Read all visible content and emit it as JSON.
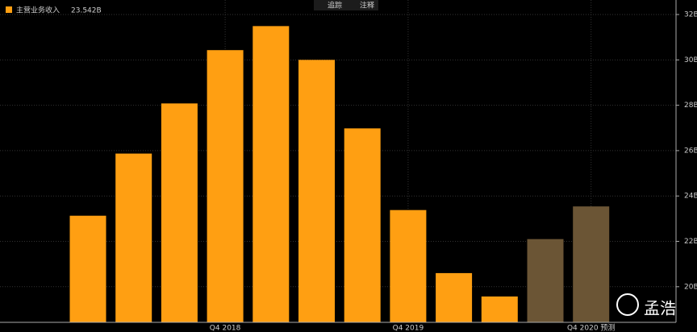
{
  "chart_data": {
    "type": "bar",
    "legend_label": "主营业务收入",
    "legend_value": "23.542B",
    "toolbar": [
      "追踪",
      "注释"
    ],
    "watermark": "孟浩",
    "categories": [
      null,
      null,
      null,
      "Q4 2018",
      null,
      null,
      null,
      "Q4 2019",
      null,
      null,
      null,
      "Q4 2020 预测"
    ],
    "values": [
      23.13,
      25.87,
      28.08,
      30.43,
      31.49,
      30.0,
      26.98,
      23.38,
      20.6,
      19.57,
      22.1,
      23.54
    ],
    "colors": [
      "#ff9f12",
      "#ff9f12",
      "#ff9f12",
      "#ff9f12",
      "#ff9f12",
      "#ff9f12",
      "#ff9f12",
      "#ff9f12",
      "#ff9f12",
      "#ff9f12",
      "#6b5535",
      "#6b5535"
    ],
    "ylim": [
      18.43,
      32.64
    ],
    "yticks": [
      {
        "value": 20,
        "label": "20B"
      },
      {
        "value": 22,
        "label": "22B"
      },
      {
        "value": 24,
        "label": "24B"
      },
      {
        "value": 26,
        "label": "26B"
      },
      {
        "value": 28,
        "label": "28B"
      },
      {
        "value": 30,
        "label": "30B"
      },
      {
        "value": 32,
        "label": "32B"
      }
    ],
    "grid": true
  }
}
